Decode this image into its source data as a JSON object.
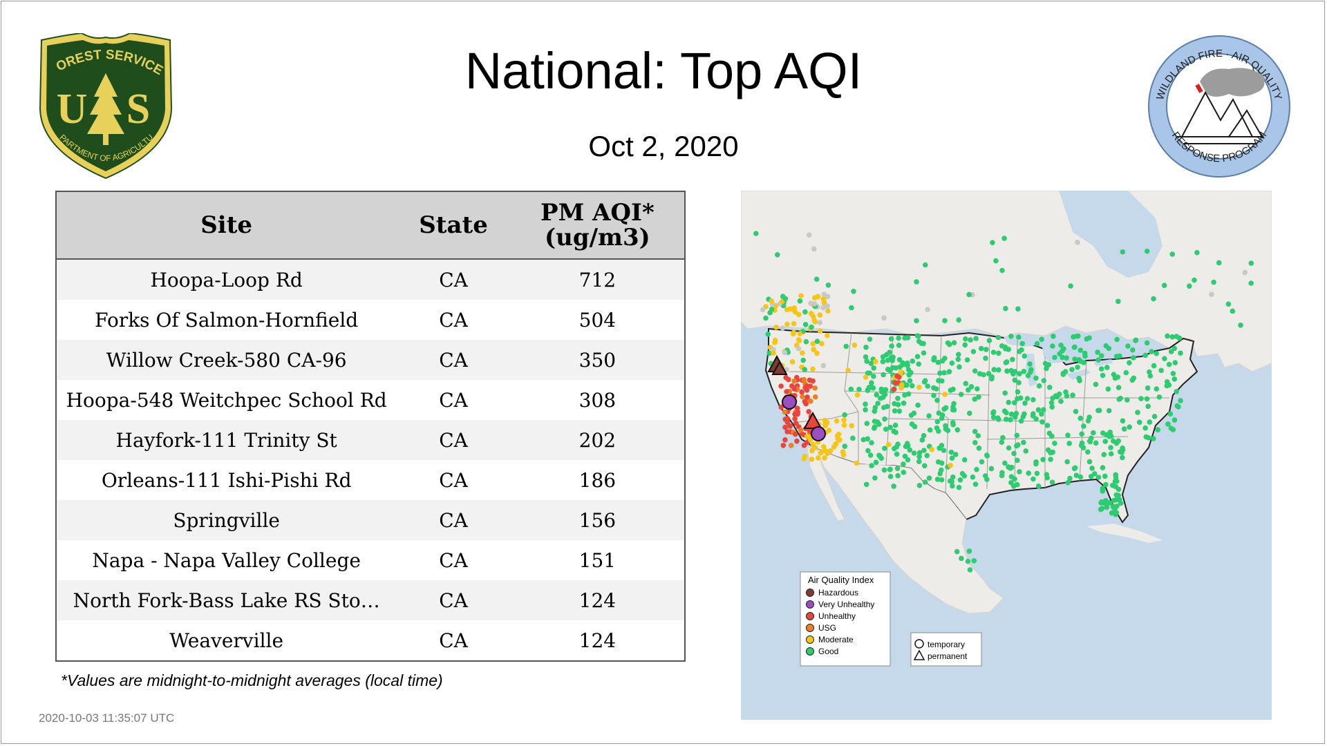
{
  "header": {
    "title": "National: Top AQI",
    "date": "Oct  2, 2020"
  },
  "logos": {
    "left": {
      "top_text": "FOREST SERVICE",
      "letters": "U S",
      "bottom_text": "DEPARTMENT OF AGRICULTURE",
      "colors": {
        "shield": "#1f4e1c",
        "gold": "#e8d15a"
      }
    },
    "right": {
      "top_text": "WILDLAND FIRE · AIR QUALITY",
      "bottom_text": "RESPONSE PROGRAM",
      "colors": {
        "ring": "#a9c6e8",
        "smoke": "#9c9c9c",
        "flame": "#d62020"
      }
    }
  },
  "table": {
    "headers": {
      "site": "Site",
      "state": "State",
      "aqi_line1": "PM AQI*",
      "aqi_line2": "(ug/m3)"
    },
    "rows": [
      {
        "site": "Hoopa-Loop Rd",
        "state": "CA",
        "aqi": "712"
      },
      {
        "site": "Forks Of Salmon-Hornfield",
        "state": "CA",
        "aqi": "504"
      },
      {
        "site": "Willow Creek-580 CA-96",
        "state": "CA",
        "aqi": "350"
      },
      {
        "site": "Hoopa-548 Weitchpec School Rd",
        "state": "CA",
        "aqi": "308"
      },
      {
        "site": "Hayfork-111 Trinity St",
        "state": "CA",
        "aqi": "202"
      },
      {
        "site": "Orleans-111 Ishi-Pishi Rd",
        "state": "CA",
        "aqi": "186"
      },
      {
        "site": "Springville",
        "state": "CA",
        "aqi": "156"
      },
      {
        "site": "Napa - Napa Valley College",
        "state": "CA",
        "aqi": "151"
      },
      {
        "site": "North Fork-Bass Lake RS Sto…",
        "state": "CA",
        "aqi": "124"
      },
      {
        "site": "Weaverville",
        "state": "CA",
        "aqi": "124"
      }
    ],
    "header_bg": "#d3d3d3"
  },
  "footnote": "*Values are midnight-to-midnight averages (local time)",
  "timestamp": "2020-10-03 11:35:07 UTC",
  "map": {
    "legend": {
      "title": "Air Quality Index",
      "items": [
        {
          "label": "Hazardous",
          "color": "#7e3b32"
        },
        {
          "label": "Very Unhealthy",
          "color": "#9b4ec2"
        },
        {
          "label": "Unhealthy",
          "color": "#e8453c"
        },
        {
          "label": "USG",
          "color": "#f07e22"
        },
        {
          "label": "Moderate",
          "color": "#f5c518"
        },
        {
          "label": "Good",
          "color": "#2ecc71"
        }
      ]
    },
    "shape_legend": {
      "temporary": "temporary",
      "permanent": "permanent"
    },
    "colors": {
      "water": "#c6d9ea",
      "land": "#eeece8",
      "no_data": "#c8c8c8"
    }
  }
}
